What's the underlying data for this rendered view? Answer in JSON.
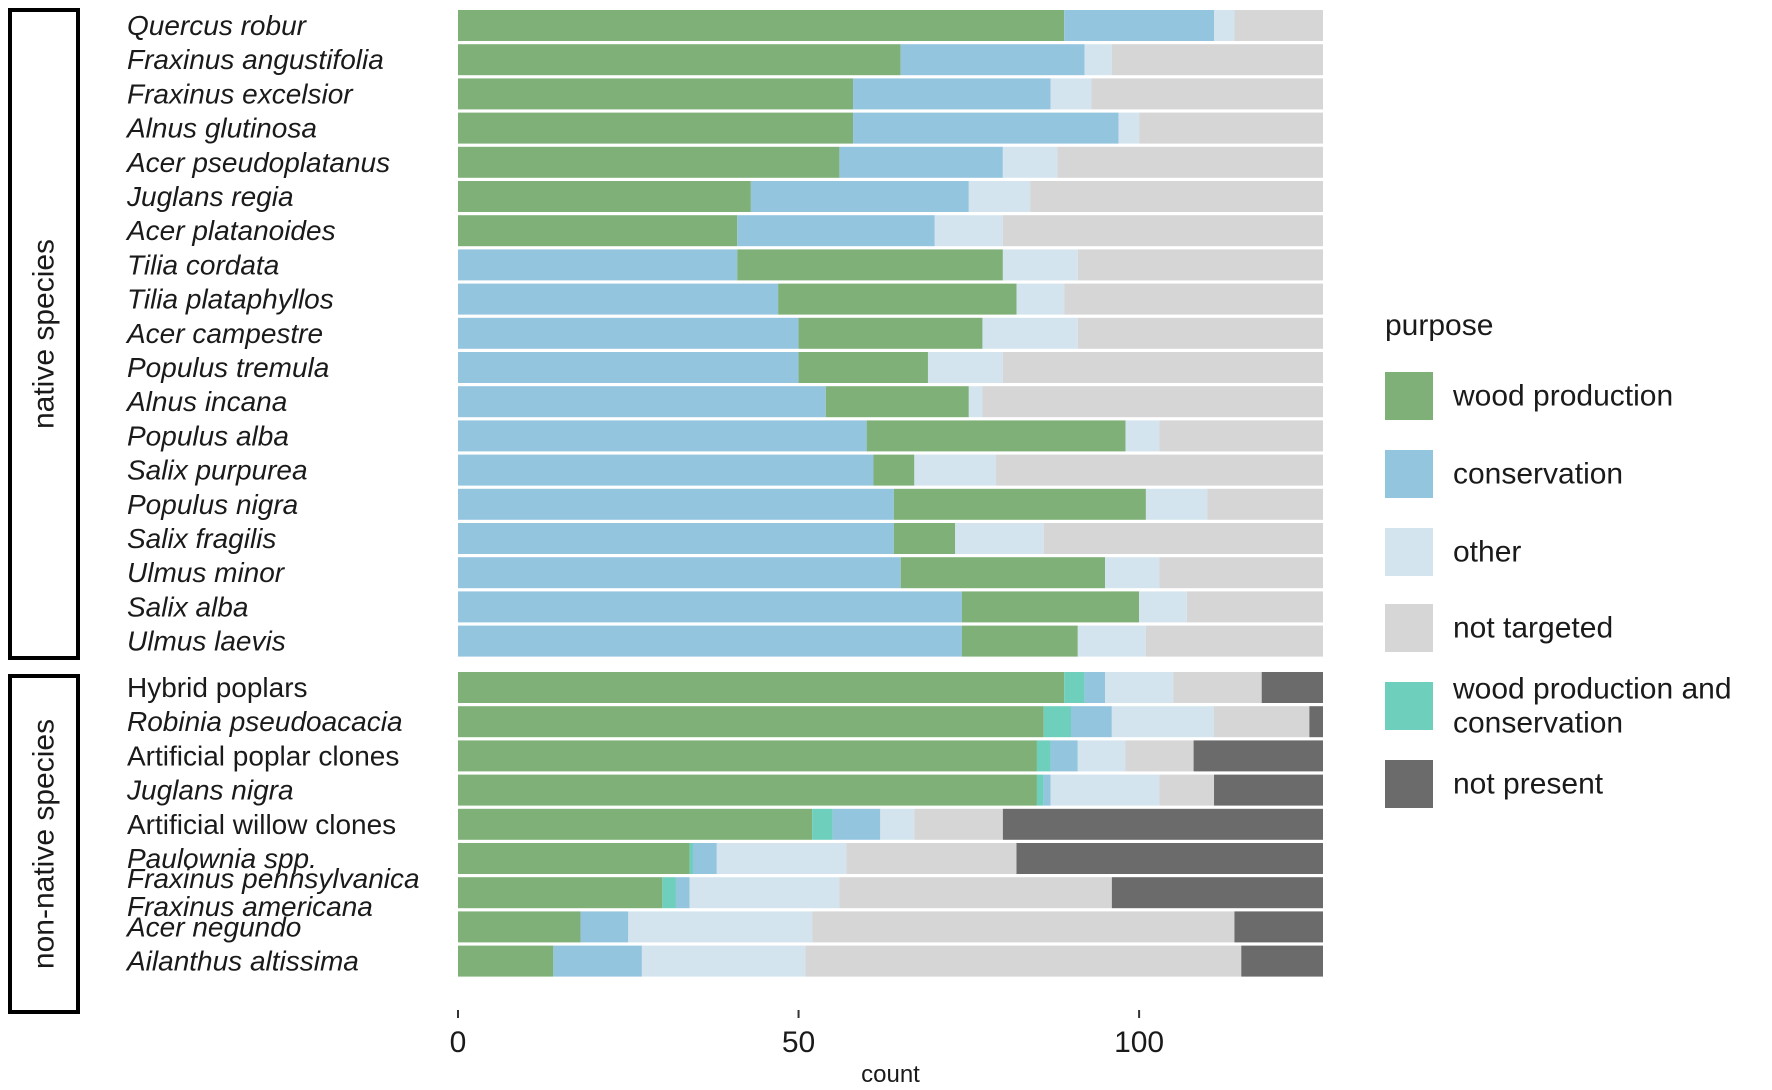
{
  "chart_data": {
    "type": "bar",
    "orientation": "horizontal",
    "stacked": true,
    "xlabel": "count",
    "xlim": [
      0,
      127
    ],
    "xticks": [
      0,
      50,
      100
    ],
    "grid": false,
    "legend": {
      "title": "purpose",
      "position": "right",
      "entries": [
        {
          "key": "wood",
          "label_lines": [
            "wood production"
          ],
          "color": "#7fb077"
        },
        {
          "key": "cons",
          "label_lines": [
            "conservation"
          ],
          "color": "#94c5df"
        },
        {
          "key": "other",
          "label_lines": [
            "other"
          ],
          "color": "#d3e4ef"
        },
        {
          "key": "nt",
          "label_lines": [
            "not targeted"
          ],
          "color": "#d6d6d6"
        },
        {
          "key": "wpc",
          "label_lines": [
            "wood production and",
            "conservation"
          ],
          "color": "#6fcfbd"
        },
        {
          "key": "np",
          "label_lines": [
            "not present"
          ],
          "color": "#6b6b6b"
        }
      ]
    },
    "groups": [
      {
        "title": "native species",
        "rows": [
          {
            "label_lines": [
              "Quercus robur"
            ],
            "italic": true,
            "segments": [
              [
                "wood",
                89
              ],
              [
                "cons",
                22
              ],
              [
                "other",
                3
              ],
              [
                "nt",
                13
              ]
            ]
          },
          {
            "label_lines": [
              "Fraxinus angustifolia"
            ],
            "italic": true,
            "segments": [
              [
                "wood",
                65
              ],
              [
                "cons",
                27
              ],
              [
                "other",
                4
              ],
              [
                "nt",
                31
              ]
            ]
          },
          {
            "label_lines": [
              "Fraxinus excelsior"
            ],
            "italic": true,
            "segments": [
              [
                "wood",
                58
              ],
              [
                "cons",
                29
              ],
              [
                "other",
                6
              ],
              [
                "nt",
                34
              ]
            ]
          },
          {
            "label_lines": [
              "Alnus glutinosa"
            ],
            "italic": true,
            "segments": [
              [
                "wood",
                58
              ],
              [
                "cons",
                39
              ],
              [
                "other",
                3
              ],
              [
                "nt",
                27
              ]
            ]
          },
          {
            "label_lines": [
              "Acer pseudoplatanus"
            ],
            "italic": true,
            "segments": [
              [
                "wood",
                56
              ],
              [
                "cons",
                24
              ],
              [
                "other",
                8
              ],
              [
                "nt",
                39
              ]
            ]
          },
          {
            "label_lines": [
              "Juglans regia"
            ],
            "italic": true,
            "segments": [
              [
                "wood",
                43
              ],
              [
                "cons",
                32
              ],
              [
                "other",
                9
              ],
              [
                "nt",
                43
              ]
            ]
          },
          {
            "label_lines": [
              "Acer platanoides"
            ],
            "italic": true,
            "segments": [
              [
                "wood",
                41
              ],
              [
                "cons",
                29
              ],
              [
                "other",
                10
              ],
              [
                "nt",
                47
              ]
            ]
          },
          {
            "label_lines": [
              "Tilia cordata"
            ],
            "italic": true,
            "segments": [
              [
                "cons",
                41
              ],
              [
                "wood",
                39
              ],
              [
                "other",
                11
              ],
              [
                "nt",
                36
              ]
            ]
          },
          {
            "label_lines": [
              "Tilia plataphyllos"
            ],
            "italic": true,
            "segments": [
              [
                "cons",
                47
              ],
              [
                "wood",
                35
              ],
              [
                "other",
                7
              ],
              [
                "nt",
                38
              ]
            ]
          },
          {
            "label_lines": [
              "Acer campestre"
            ],
            "italic": true,
            "segments": [
              [
                "cons",
                50
              ],
              [
                "wood",
                27
              ],
              [
                "other",
                14
              ],
              [
                "nt",
                36
              ]
            ]
          },
          {
            "label_lines": [
              "Populus tremula"
            ],
            "italic": true,
            "segments": [
              [
                "cons",
                50
              ],
              [
                "wood",
                19
              ],
              [
                "other",
                11
              ],
              [
                "nt",
                47
              ]
            ]
          },
          {
            "label_lines": [
              "Alnus incana"
            ],
            "italic": true,
            "segments": [
              [
                "cons",
                54
              ],
              [
                "wood",
                21
              ],
              [
                "other",
                2
              ],
              [
                "nt",
                50
              ]
            ]
          },
          {
            "label_lines": [
              "Populus alba"
            ],
            "italic": true,
            "segments": [
              [
                "cons",
                60
              ],
              [
                "wood",
                38
              ],
              [
                "other",
                5
              ],
              [
                "nt",
                24
              ]
            ]
          },
          {
            "label_lines": [
              "Salix purpurea"
            ],
            "italic": true,
            "segments": [
              [
                "cons",
                61
              ],
              [
                "wood",
                6
              ],
              [
                "other",
                12
              ],
              [
                "nt",
                48
              ]
            ]
          },
          {
            "label_lines": [
              "Populus nigra"
            ],
            "italic": true,
            "segments": [
              [
                "cons",
                64
              ],
              [
                "wood",
                37
              ],
              [
                "other",
                9
              ],
              [
                "nt",
                17
              ]
            ]
          },
          {
            "label_lines": [
              "Salix fragilis"
            ],
            "italic": true,
            "segments": [
              [
                "cons",
                64
              ],
              [
                "wood",
                9
              ],
              [
                "other",
                13
              ],
              [
                "nt",
                41
              ]
            ]
          },
          {
            "label_lines": [
              "Ulmus minor"
            ],
            "italic": true,
            "segments": [
              [
                "cons",
                65
              ],
              [
                "wood",
                30
              ],
              [
                "other",
                8
              ],
              [
                "nt",
                24
              ]
            ]
          },
          {
            "label_lines": [
              "Salix alba"
            ],
            "italic": true,
            "segments": [
              [
                "cons",
                74
              ],
              [
                "wood",
                26
              ],
              [
                "other",
                7
              ],
              [
                "nt",
                20
              ]
            ]
          },
          {
            "label_lines": [
              "Ulmus laevis"
            ],
            "italic": true,
            "segments": [
              [
                "cons",
                74
              ],
              [
                "wood",
                17
              ],
              [
                "other",
                10
              ],
              [
                "nt",
                26
              ]
            ]
          }
        ]
      },
      {
        "title": "non-native species",
        "rows": [
          {
            "label_lines": [
              "Hybrid poplars"
            ],
            "italic": false,
            "segments": [
              [
                "wood",
                89
              ],
              [
                "wpc",
                3
              ],
              [
                "cons",
                3
              ],
              [
                "other",
                10
              ],
              [
                "nt",
                13
              ],
              [
                "np",
                9
              ]
            ]
          },
          {
            "label_lines": [
              "Robinia pseudoacacia"
            ],
            "italic": true,
            "segments": [
              [
                "wood",
                86
              ],
              [
                "wpc",
                4
              ],
              [
                "cons",
                6
              ],
              [
                "other",
                15
              ],
              [
                "nt",
                14
              ],
              [
                "np",
                2
              ]
            ]
          },
          {
            "label_lines": [
              "Artificial poplar clones"
            ],
            "italic": false,
            "segments": [
              [
                "wood",
                85
              ],
              [
                "wpc",
                2
              ],
              [
                "cons",
                4
              ],
              [
                "other",
                7
              ],
              [
                "nt",
                10
              ],
              [
                "np",
                19
              ]
            ]
          },
          {
            "label_lines": [
              "Juglans nigra"
            ],
            "italic": true,
            "segments": [
              [
                "wood",
                85
              ],
              [
                "wpc",
                1
              ],
              [
                "cons",
                1
              ],
              [
                "other",
                16
              ],
              [
                "nt",
                8
              ],
              [
                "np",
                16
              ]
            ]
          },
          {
            "label_lines": [
              "Artificial willow clones"
            ],
            "italic": false,
            "segments": [
              [
                "wood",
                52
              ],
              [
                "wpc",
                3
              ],
              [
                "cons",
                7
              ],
              [
                "other",
                5
              ],
              [
                "nt",
                13
              ],
              [
                "np",
                47
              ]
            ]
          },
          {
            "label_lines": [
              "Paulownia spp."
            ],
            "italic": true,
            "segments": [
              [
                "wood",
                34
              ],
              [
                "wpc",
                0.5
              ],
              [
                "cons",
                3.5
              ],
              [
                "other",
                19
              ],
              [
                "nt",
                25
              ],
              [
                "np",
                45
              ]
            ]
          },
          {
            "label_lines": [
              "Fraxinus pennsylvanica",
              "Fraxinus americana"
            ],
            "italic": true,
            "segments": [
              [
                "wood",
                30
              ],
              [
                "wpc",
                2
              ],
              [
                "cons",
                2
              ],
              [
                "other",
                22
              ],
              [
                "nt",
                40
              ],
              [
                "np",
                31
              ]
            ]
          },
          {
            "label_lines": [
              "Acer negundo"
            ],
            "italic": true,
            "segments": [
              [
                "wood",
                18
              ],
              [
                "cons",
                7
              ],
              [
                "other",
                27
              ],
              [
                "nt",
                62
              ],
              [
                "np",
                13
              ]
            ]
          },
          {
            "label_lines": [
              "Ailanthus altissima"
            ],
            "italic": true,
            "segments": [
              [
                "wood",
                14
              ],
              [
                "cons",
                13
              ],
              [
                "other",
                24
              ],
              [
                "nt",
                64
              ],
              [
                "np",
                12
              ]
            ]
          }
        ]
      }
    ]
  }
}
